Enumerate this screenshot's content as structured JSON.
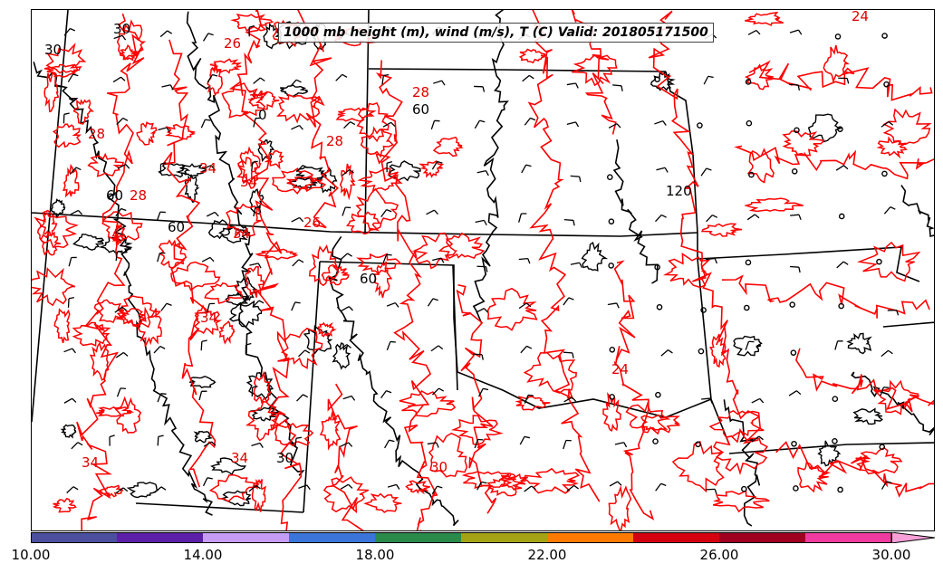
{
  "title": "1000 mb height (m), wind (m/s), T (C) Valid: 201805171500",
  "colorbar": {
    "colors": [
      "#4b4f9e",
      "#5b1fa8",
      "#c79cf5",
      "#3b75d9",
      "#2a8a4a",
      "#a3a315",
      "#ff7a00",
      "#d40010",
      "#a00020",
      "#f03aa0",
      "#f7a0d8"
    ],
    "tick_labels": [
      "10.00",
      "14.00",
      "18.00",
      "22.00",
      "26.00",
      "30.00"
    ]
  },
  "temperature_contour_labels": [
    "28",
    "26",
    "28",
    "28",
    "28",
    "34",
    "34",
    "34",
    "34",
    "30",
    "34",
    "24",
    "26",
    "34",
    "24",
    "34"
  ],
  "height_contour_labels": [
    "30",
    "30",
    "0",
    "60",
    "120",
    "60",
    "60",
    "30",
    "60"
  ],
  "colors": {
    "temperature_contour": "#ff0000",
    "height_contour": "#000000",
    "boundaries": "#000000"
  },
  "icons": {
    "wind_barb": "wind-barb-icon",
    "calm_wind": "calm-circle-icon"
  }
}
